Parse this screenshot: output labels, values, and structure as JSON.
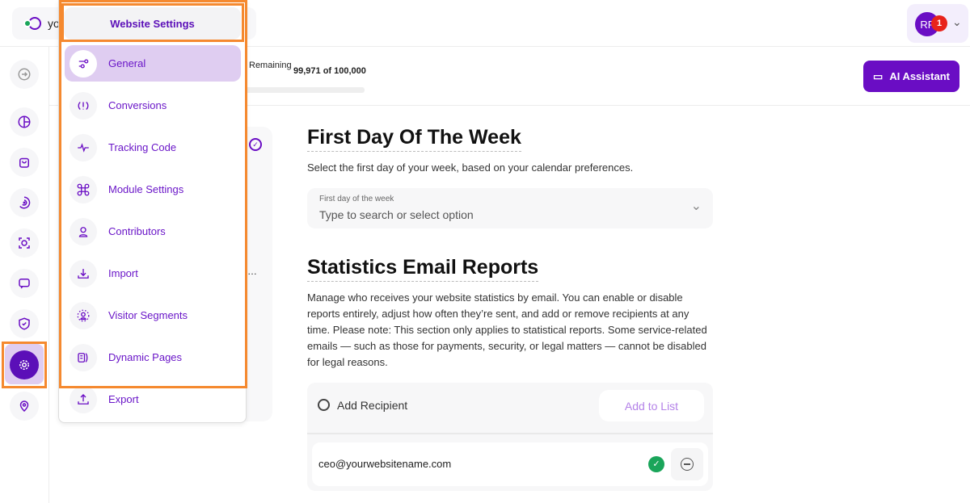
{
  "header": {
    "site_label": "yo",
    "user_initials": "RF",
    "notification_count": "1"
  },
  "usage": {
    "label": "Remaining",
    "value": "99,971 of 100,000",
    "fraction": 0.9997
  },
  "ai_button": "AI Assistant",
  "menu": {
    "title": "Website Settings",
    "items": [
      {
        "label": "General",
        "icon": "sliders-icon",
        "active": true
      },
      {
        "label": "Conversions",
        "icon": "conversion-icon"
      },
      {
        "label": "Tracking Code",
        "icon": "pulse-icon"
      },
      {
        "label": "Module Settings",
        "icon": "command-icon"
      },
      {
        "label": "Contributors",
        "icon": "user-icon"
      },
      {
        "label": "Import",
        "icon": "download-icon"
      },
      {
        "label": "Visitor Segments",
        "icon": "segment-icon"
      },
      {
        "label": "Dynamic Pages",
        "icon": "pages-icon"
      },
      {
        "label": "Export",
        "icon": "upload-icon"
      }
    ]
  },
  "week": {
    "title": "First Day Of The Week",
    "desc": "Select the first day of your week, based on your calendar preferences.",
    "field_label": "First day of the week",
    "placeholder": "Type to search or select option"
  },
  "reports": {
    "title": "Statistics Email Reports",
    "desc": "Manage who receives your website statistics by email. You can enable or disable reports entirely, adjust how often they’re sent, and add or remove recipients at any time. Please note: This section only applies to statistical reports. Some service-related emails — such as those for payments, security, or legal matters — cannot be disabled for legal reasons.",
    "add_recipient": "Add Recipient",
    "add_button": "Add to List",
    "recipients": [
      "ceo@yourwebsitename.com"
    ]
  },
  "colors": {
    "accent": "#6a0dc4",
    "highlight": "#f5892f",
    "verified": "#1aa55a"
  }
}
